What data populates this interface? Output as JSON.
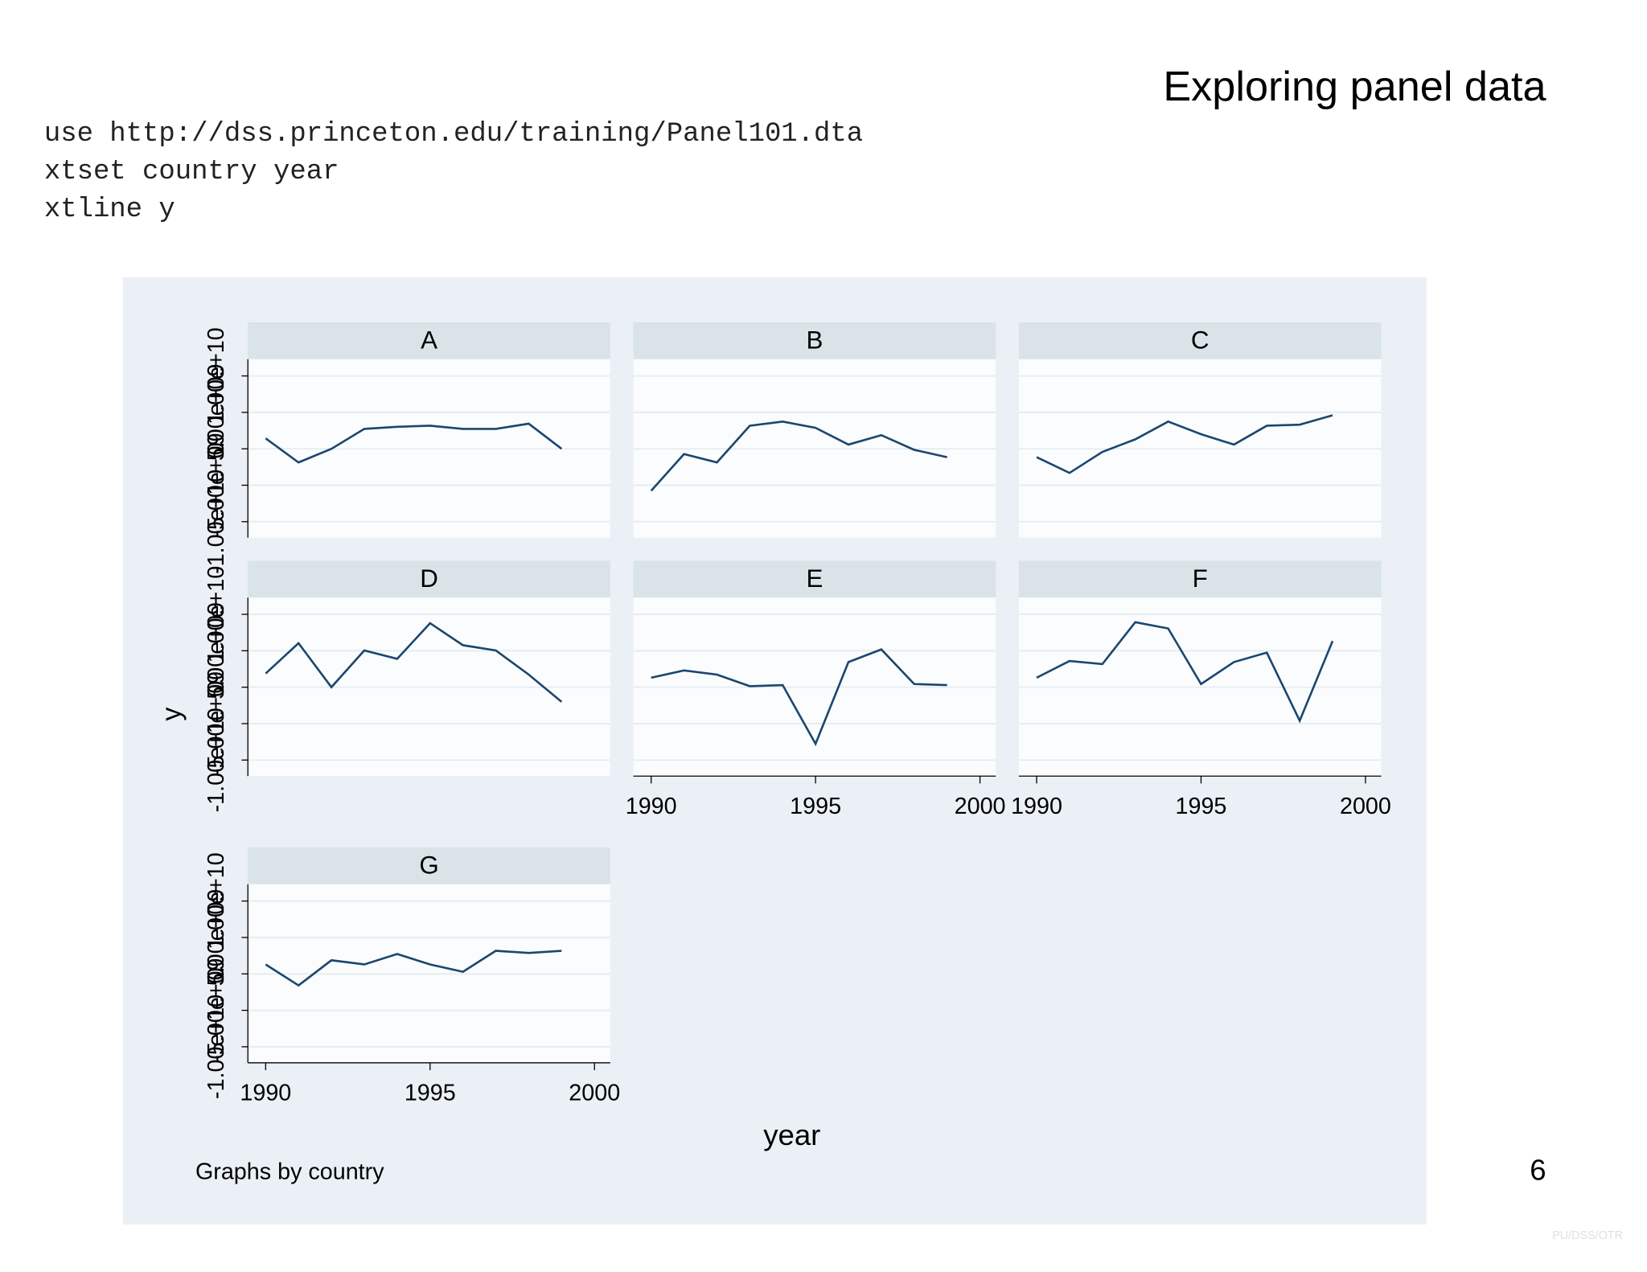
{
  "slide": {
    "title": "Exploring panel data",
    "code": [
      "use http://dss.princeton.edu/training/Panel101.dta",
      "xtset country year",
      "xtline y"
    ],
    "page_number": "6",
    "footer": "PU/DSS/OTR"
  },
  "chart_data": {
    "type": "line",
    "color": "#1a476f",
    "grid": true,
    "y_label": "y",
    "x_label": "year",
    "note": "Graphs by country",
    "x": [
      1990,
      1991,
      1992,
      1993,
      1994,
      1995,
      1996,
      1997,
      1998,
      1999
    ],
    "xlim": [
      1989.46,
      2000.48
    ],
    "xticks": [
      1990,
      1995,
      2000
    ],
    "ylim": [
      -12200000000,
      12300000000
    ],
    "yticks": [
      {
        "value": -10000000000,
        "label": "-1.00e+10"
      },
      {
        "value": -5000000000,
        "label": "-5.00e+09"
      },
      0,
      {
        "value": 5000000000,
        "label": "5.00e+09"
      },
      {
        "value": 10000000000,
        "label": "1.00e+10"
      }
    ],
    "panels": [
      {
        "name": "A",
        "values": [
          1440000000,
          -1870000000,
          0,
          2730000000,
          3020000000,
          3170000000,
          2730000000,
          2730000000,
          3450000000,
          0
        ]
      },
      {
        "name": "B",
        "values": [
          -5760000000,
          -720000000,
          -1870000000,
          3170000000,
          3740000000,
          2880000000,
          580000000,
          1870000000,
          -140000000,
          -1150000000
        ]
      },
      {
        "name": "C",
        "values": [
          -1150000000,
          -3310000000,
          -430000000,
          1300000000,
          3740000000,
          2010000000,
          580000000,
          3170000000,
          3310000000,
          4600000000
        ]
      },
      {
        "name": "D",
        "values": [
          1870000000,
          6040000000,
          0,
          5040000000,
          3890000000,
          8780000000,
          5760000000,
          5040000000,
          1730000000,
          -2010000000
        ]
      },
      {
        "name": "E",
        "values": [
          1300000000,
          2300000000,
          1730000000,
          140000000,
          290000000,
          -7770000000,
          3450000000,
          5180000000,
          430000000,
          290000000
        ]
      },
      {
        "name": "F",
        "values": [
          1300000000,
          3600000000,
          3170000000,
          8920000000,
          8060000000,
          430000000,
          3450000000,
          4750000000,
          -4600000000,
          6330000000
        ]
      },
      {
        "name": "G",
        "values": [
          1300000000,
          -1580000000,
          1870000000,
          1300000000,
          2730000000,
          1300000000,
          290000000,
          3170000000,
          2880000000,
          3170000000
        ]
      }
    ]
  }
}
